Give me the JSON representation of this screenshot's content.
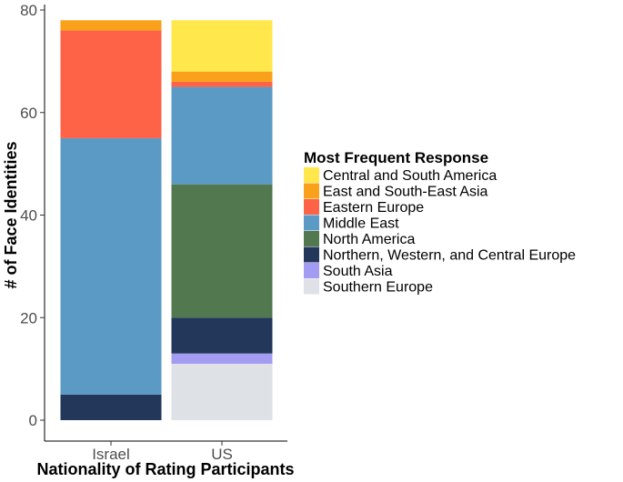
{
  "chart_data": {
    "type": "bar",
    "stacked": true,
    "categories": [
      "Israel",
      "US"
    ],
    "xlabel": "Nationality of Rating Participants",
    "ylabel": "# of Face Identities",
    "ylim": [
      0,
      80
    ],
    "yticks": [
      0,
      20,
      40,
      60,
      80
    ],
    "grid": false,
    "legend_title": "Most Frequent Response",
    "legend_position": "right",
    "series": [
      {
        "name": "Central and South America",
        "color": "#FFE74C",
        "values": [
          0,
          10
        ]
      },
      {
        "name": "East and South-East Asia",
        "color": "#F9A11B",
        "values": [
          2,
          2
        ]
      },
      {
        "name": "Eastern Europe",
        "color": "#FF6347",
        "values": [
          21,
          1
        ]
      },
      {
        "name": "Middle East",
        "color": "#5B9AC4",
        "values": [
          50,
          19
        ]
      },
      {
        "name": "North America",
        "color": "#52784F",
        "values": [
          0,
          26
        ]
      },
      {
        "name": "Northern, Western, and Central Europe",
        "color": "#22375A",
        "values": [
          5,
          7
        ]
      },
      {
        "name": "South Asia",
        "color": "#A49CF2",
        "values": [
          0,
          2
        ]
      },
      {
        "name": "Southern Europe",
        "color": "#DEE1E6",
        "values": [
          0,
          11
        ]
      }
    ]
  }
}
